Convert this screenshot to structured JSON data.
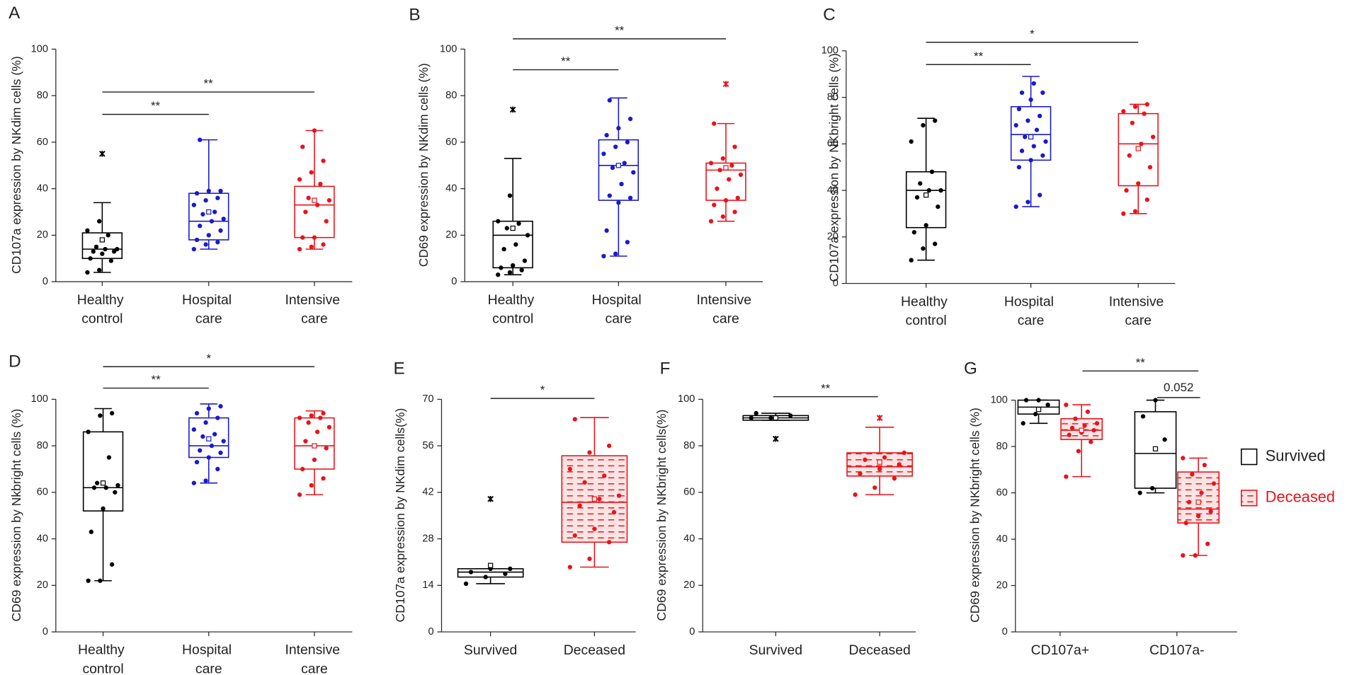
{
  "chart_data": [
    {
      "type": "box",
      "panel": "A",
      "ylabel": "CD107a expression by NKdim cells (%)",
      "ylim": [
        0,
        100
      ],
      "yticks": [
        0,
        20,
        40,
        60,
        80,
        100
      ],
      "categories": [
        "Healthy control",
        "Hospital care",
        "Intensive care"
      ],
      "boxes": [
        {
          "color": "#000000",
          "low": 4,
          "q1": 10,
          "median": 14,
          "q3": 21,
          "high": 34,
          "mean": 18,
          "outliers": [
            55
          ],
          "points": [
            4,
            5,
            9,
            10,
            12,
            13,
            13,
            14,
            14,
            15,
            20,
            22,
            26
          ]
        },
        {
          "color": "#1a1acc",
          "low": 14,
          "q1": 18,
          "median": 26,
          "q3": 38,
          "high": 61,
          "mean": 30,
          "outliers": [],
          "points": [
            14,
            16,
            17,
            18,
            20,
            22,
            24,
            26,
            27,
            29,
            30,
            33,
            35,
            36,
            38,
            39,
            39,
            61
          ]
        },
        {
          "color": "#e8141b",
          "low": 14,
          "q1": 19,
          "median": 33,
          "q3": 41,
          "high": 65,
          "mean": 35,
          "outliers": [],
          "points": [
            14,
            15,
            16,
            19,
            19,
            26,
            30,
            33,
            35,
            36,
            42,
            44,
            47,
            52,
            58,
            65
          ]
        }
      ],
      "annotations": [
        "**",
        "**"
      ]
    },
    {
      "type": "box",
      "panel": "B",
      "ylabel": "CD69 expression by NKdim cells (%)",
      "ylim": [
        0,
        100
      ],
      "yticks": [
        0,
        20,
        40,
        60,
        80,
        100
      ],
      "categories": [
        "Healthy control",
        "Hospital care",
        "Intensive care"
      ],
      "boxes": [
        {
          "color": "#000000",
          "low": 3,
          "q1": 6,
          "median": 20,
          "q3": 26,
          "high": 53,
          "mean": 23,
          "outliers": [
            74
          ],
          "points": [
            3,
            4,
            5,
            6,
            7,
            9,
            14,
            16,
            20,
            23,
            25,
            26,
            37
          ]
        },
        {
          "color": "#1a1acc",
          "low": 11,
          "q1": 35,
          "median": 50,
          "q3": 61,
          "high": 79,
          "mean": 50,
          "outliers": [],
          "points": [
            11,
            12,
            17,
            22,
            34,
            36,
            37,
            42,
            47,
            49,
            51,
            55,
            58,
            60,
            63,
            66,
            70,
            78
          ]
        },
        {
          "color": "#e8141b",
          "low": 26,
          "q1": 35,
          "median": 48,
          "q3": 51,
          "high": 68,
          "mean": 49,
          "outliers": [
            85
          ],
          "points": [
            26,
            28,
            30,
            33,
            35,
            36,
            40,
            44,
            46,
            48,
            50,
            51,
            53,
            58,
            68
          ]
        }
      ],
      "annotations": [
        "**",
        "**"
      ]
    },
    {
      "type": "box",
      "panel": "C",
      "ylabel": "CD107a expression by NKbright cells (%)",
      "ylim": [
        0,
        100
      ],
      "yticks": [
        0,
        20,
        40,
        60,
        80,
        100
      ],
      "categories": [
        "Healthy control",
        "Hospital care",
        "Intensive care"
      ],
      "boxes": [
        {
          "color": "#000000",
          "low": 10,
          "q1": 24,
          "median": 40,
          "q3": 48,
          "high": 71,
          "mean": 38,
          "outliers": [],
          "points": [
            10,
            15,
            17,
            22,
            25,
            33,
            37,
            40,
            40,
            43,
            48,
            61,
            68,
            70
          ]
        },
        {
          "color": "#1a1acc",
          "low": 33,
          "q1": 53,
          "median": 64,
          "q3": 76,
          "high": 89,
          "mean": 63,
          "outliers": [],
          "points": [
            33,
            35,
            38,
            50,
            53,
            55,
            57,
            59,
            61,
            63,
            66,
            68,
            70,
            72,
            75,
            79,
            82,
            82,
            86
          ]
        },
        {
          "color": "#e8141b",
          "low": 30,
          "q1": 42,
          "median": 60,
          "q3": 73,
          "high": 77,
          "mean": 58,
          "outliers": [],
          "points": [
            30,
            31,
            36,
            40,
            43,
            50,
            55,
            60,
            63,
            69,
            73,
            74,
            76,
            77
          ]
        }
      ],
      "annotations": [
        "**",
        "*"
      ]
    },
    {
      "type": "box",
      "panel": "D",
      "ylabel": "CD69 expression by Nkbright cells (%)",
      "ylim": [
        0,
        100
      ],
      "yticks": [
        0,
        20,
        40,
        60,
        80,
        100
      ],
      "categories": [
        "Healthy control",
        "Hospital care",
        "Intensive care"
      ],
      "boxes": [
        {
          "color": "#000000",
          "low": 22,
          "q1": 52,
          "median": 62,
          "q3": 86,
          "high": 96,
          "mean": 64,
          "outliers": [],
          "points": [
            22,
            22,
            29,
            43,
            53,
            60,
            62,
            62,
            63,
            64,
            75,
            86,
            93,
            94
          ]
        },
        {
          "color": "#1a1acc",
          "low": 64,
          "q1": 75,
          "median": 80,
          "q3": 92,
          "high": 98,
          "mean": 83,
          "outliers": [],
          "points": [
            64,
            65,
            70,
            73,
            75,
            77,
            78,
            80,
            82,
            84,
            85,
            87,
            90,
            92,
            94,
            96,
            97
          ]
        },
        {
          "color": "#e8141b",
          "low": 59,
          "q1": 70,
          "median": 80,
          "q3": 92,
          "high": 95,
          "mean": 80,
          "outliers": [],
          "points": [
            59,
            63,
            66,
            70,
            74,
            79,
            82,
            86,
            88,
            90,
            92,
            92,
            93,
            94
          ]
        }
      ],
      "annotations": [
        "**",
        "*"
      ]
    },
    {
      "type": "box",
      "panel": "E",
      "ylabel": "CD107a expression by NKdim cells(%)",
      "ylim": [
        0,
        70
      ],
      "yticks": [
        0,
        14,
        28,
        42,
        56,
        70
      ],
      "categories": [
        "Survived",
        "Deceased"
      ],
      "boxes": [
        {
          "color": "#000000",
          "low": 14.5,
          "q1": 16.5,
          "median": 18,
          "q3": 19,
          "high": 19,
          "mean": 20,
          "outliers": [
            40
          ],
          "points": [
            14.5,
            16.5,
            17.5,
            18,
            19,
            19
          ]
        },
        {
          "color": "#e8141b",
          "pattern": "hatched",
          "low": 19.5,
          "q1": 27,
          "median": 39,
          "q3": 53,
          "high": 64.5,
          "mean": 40,
          "outliers": [],
          "points": [
            19.5,
            22,
            27,
            29,
            31,
            36,
            38,
            40,
            41,
            45,
            47,
            49,
            54,
            56,
            64
          ]
        }
      ],
      "annotations": [
        "*"
      ]
    },
    {
      "type": "box",
      "panel": "F",
      "ylabel": "CD69 expression by NKbright cells(%)",
      "ylim": [
        0,
        100
      ],
      "yticks": [
        0,
        20,
        40,
        60,
        80,
        100
      ],
      "categories": [
        "Survived",
        "Deceased"
      ],
      "boxes": [
        {
          "color": "#000000",
          "low": 91,
          "q1": 91,
          "median": 92,
          "q3": 93,
          "high": 94,
          "mean": 92,
          "outliers": [
            83
          ],
          "points": [
            92,
            92,
            93,
            94
          ]
        },
        {
          "color": "#e8141b",
          "pattern": "hatched",
          "low": 59,
          "q1": 67,
          "median": 71,
          "q3": 77,
          "high": 88,
          "mean": 73,
          "outliers": [
            92
          ],
          "points": [
            59,
            62,
            66,
            68,
            70,
            72,
            74,
            75,
            77
          ]
        }
      ],
      "annotations": [
        "**"
      ]
    },
    {
      "type": "grouped-box",
      "panel": "G",
      "ylabel": "CD69 expression by NKbright cells (%)",
      "ylim": [
        0,
        100
      ],
      "yticks": [
        0,
        20,
        40,
        60,
        80,
        100
      ],
      "categories": [
        "CD107a+",
        "CD107a-"
      ],
      "series": [
        {
          "name": "Survived",
          "color": "#000000",
          "boxes": [
            {
              "low": 90,
              "q1": 94,
              "median": 97,
              "q3": 100,
              "high": 100,
              "mean": 96,
              "outliers": [],
              "points": [
                90,
                94,
                98,
                100,
                100
              ]
            },
            {
              "low": 60,
              "q1": 62,
              "median": 77,
              "q3": 95,
              "high": 100,
              "mean": 79,
              "outliers": [],
              "points": [
                60,
                62,
                83,
                93,
                100
              ]
            }
          ]
        },
        {
          "name": "Deceased",
          "color": "#e8141b",
          "pattern": "hatched",
          "boxes": [
            {
              "low": 67,
              "q1": 83,
              "median": 87,
              "q3": 92,
              "high": 98,
              "mean": 87,
              "outliers": [],
              "points": [
                67,
                78,
                82,
                85,
                86,
                87,
                88,
                89,
                90,
                92,
                95,
                98
              ]
            },
            {
              "low": 33,
              "q1": 47,
              "median": 53,
              "q3": 69,
              "high": 75,
              "mean": 56,
              "outliers": [],
              "points": [
                33,
                33,
                38,
                47,
                50,
                52,
                56,
                60,
                64,
                68,
                72,
                75
              ]
            }
          ]
        }
      ],
      "annotations": [
        "**",
        "0.052"
      ]
    }
  ]
}
